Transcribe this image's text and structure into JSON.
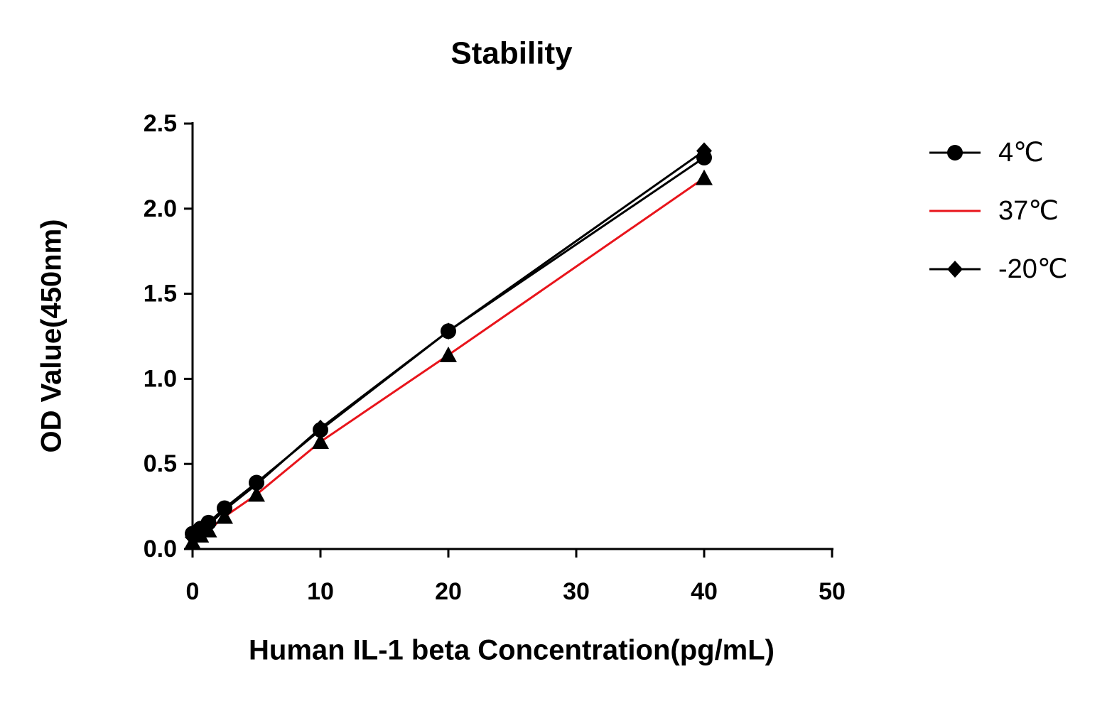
{
  "chart_data": {
    "type": "line",
    "title": "Stability",
    "x_label": "Human IL-1 beta Concentration(pg/mL)",
    "y_label": "OD Value(450nm)",
    "x": [
      0,
      0.625,
      1.25,
      2.5,
      5,
      10,
      20,
      40
    ],
    "series": [
      {
        "name": "4℃",
        "color": "#000000",
        "marker": "circle",
        "marker_color": "#000000",
        "legend_marker": true,
        "values": [
          0.09,
          0.12,
          0.155,
          0.24,
          0.39,
          0.7,
          1.28,
          2.3
        ]
      },
      {
        "name": "37℃",
        "color": "#e8141b",
        "marker": "triangle",
        "marker_color": "#000000",
        "legend_marker": false,
        "values": [
          0.04,
          0.08,
          0.11,
          0.19,
          0.32,
          0.63,
          1.14,
          2.18
        ]
      },
      {
        "name": "-20℃",
        "color": "#000000",
        "marker": "diamond",
        "marker_color": "#000000",
        "legend_marker": true,
        "values": [
          0.07,
          0.1,
          0.14,
          0.23,
          0.38,
          0.71,
          1.28,
          2.34
        ]
      }
    ],
    "xlim": [
      0,
      50
    ],
    "xticks": [
      0,
      10,
      20,
      30,
      40,
      50
    ],
    "ylim": [
      0,
      2.5
    ],
    "yticks": [
      {
        "value": 0,
        "label": "0.0"
      },
      0.5,
      {
        "value": 1,
        "label": "1.0"
      },
      1.5,
      {
        "value": 2,
        "label": "2.0"
      },
      2.5
    ],
    "grid": false,
    "legend": "right"
  }
}
